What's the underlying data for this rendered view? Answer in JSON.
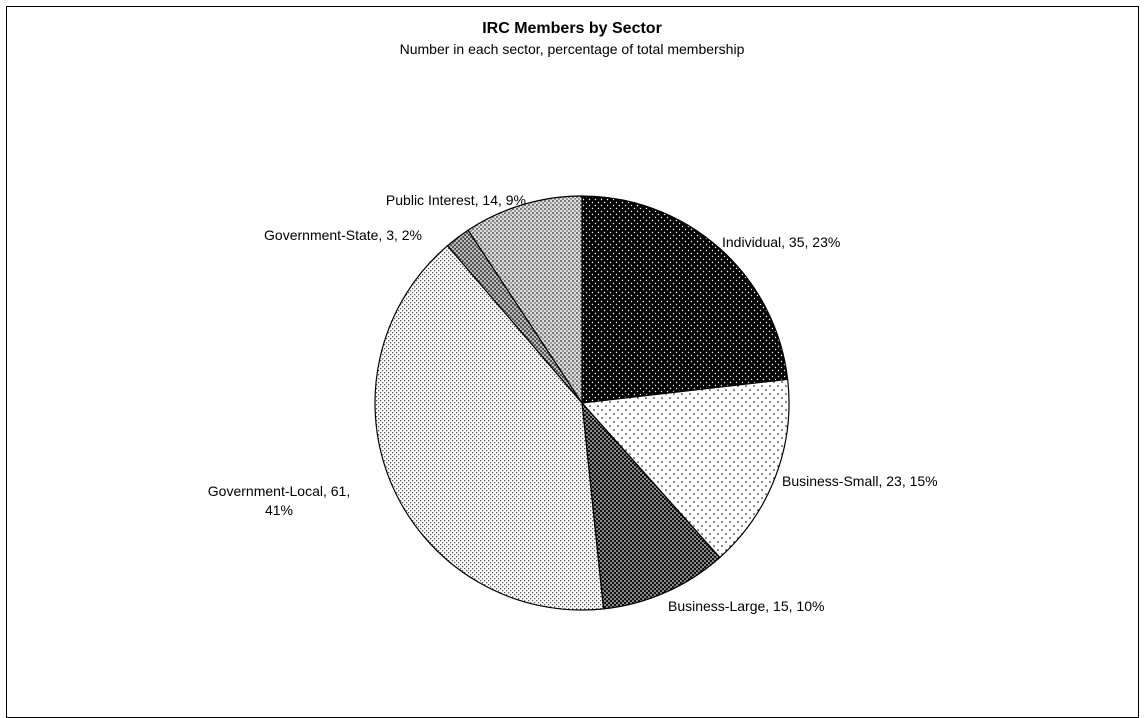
{
  "chart_data": {
    "type": "pie",
    "title": "IRC Members by Sector",
    "subtitle": "Number in each sector, percentage of total membership",
    "legend": "none",
    "slices": [
      {
        "name": "Individual",
        "value": 35,
        "percent": 23,
        "label": "Individual, 35, 23%",
        "pattern": "dense-dark"
      },
      {
        "name": "Business-Small",
        "value": 23,
        "percent": 15,
        "label": "Business-Small, 23, 15%",
        "pattern": "sparse-light"
      },
      {
        "name": "Business-Large",
        "value": 15,
        "percent": 10,
        "label": "Business-Large, 15, 10%",
        "pattern": "checker-dark"
      },
      {
        "name": "Government-Local",
        "value": 61,
        "percent": 41,
        "label": "Government-Local, 61, 41%",
        "label_lines": [
          "Government-Local, 61,",
          "41%"
        ],
        "pattern": "fine-light"
      },
      {
        "name": "Government-State",
        "value": 3,
        "percent": 2,
        "label": "Government-State, 3, 2%",
        "pattern": "medium-gray"
      },
      {
        "name": "Public Interest",
        "value": 14,
        "percent": 9,
        "label": "Public Interest, 14, 9%",
        "pattern": "grid-gray"
      }
    ]
  }
}
